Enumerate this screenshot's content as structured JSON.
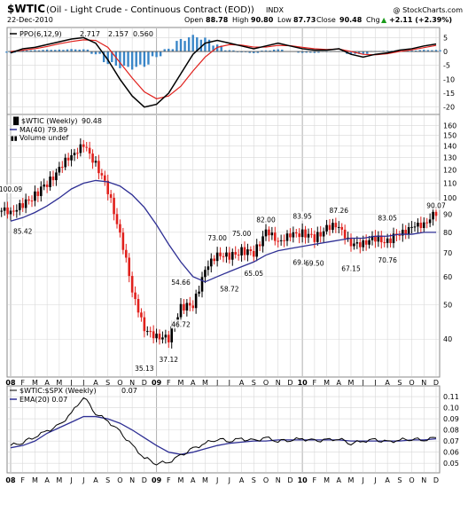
{
  "header": {
    "symbol": "$WTIC",
    "description": "(Oil - Light Crude - Continuous Contract (EOD))",
    "exchange": "INDX",
    "date": "22-Dec-2010",
    "watermark": "@ StockCharts.com",
    "open_label": "Open",
    "open": "88.78",
    "high_label": "High",
    "high": "90.80",
    "low_label": "Low",
    "low": "87.73",
    "close_label": "Close",
    "close": "90.48",
    "chg_label": "Chg",
    "chg": "+2.11 (+2.39%)",
    "chg_arrow": "▲"
  },
  "ppo_panel": {
    "legend_name": "PPO(6,12,9)",
    "ppo_value": "2.717",
    "signal_value": "2.157",
    "hist_value": "0.560",
    "ppo_color": "#000000",
    "signal_color": "#e0201c",
    "hist_color": "#3a86c8",
    "y_ticks": [
      "5",
      "0",
      "-5",
      "-10",
      "-15",
      "-20"
    ]
  },
  "price_panel": {
    "legend_name": "$WTIC (Weekly)",
    "legend_value": "90.48",
    "ma_legend": "MA(40) 79.89",
    "volume_legend": "Volume undef",
    "ma_color": "#2e2f94",
    "up_color": "#000000",
    "down_color": "#e0201c",
    "y_ticks": [
      "160",
      "150",
      "140",
      "130",
      "120",
      "110",
      "100",
      "90",
      "80",
      "70",
      "60",
      "50",
      "40"
    ]
  },
  "ratio_panel": {
    "legend_name": "$WTIC:$SPX (Weekly)",
    "legend_value": "0.07",
    "ema_legend": "EMA(20) 0.07",
    "ema_color": "#2e2f94",
    "y_ticks": [
      "0.11",
      "0.10",
      "0.09",
      "0.08",
      "0.07",
      "0.06",
      "0.05"
    ]
  },
  "x_axis_labels": [
    "08",
    "F",
    "M",
    "A",
    "M",
    "J",
    "J",
    "A",
    "S",
    "O",
    "N",
    "D",
    "09",
    "F",
    "M",
    "A",
    "M",
    "J",
    "J",
    "A",
    "S",
    "O",
    "N",
    "D",
    "10",
    "F",
    "M",
    "A",
    "M",
    "J",
    "J",
    "A",
    "S",
    "O",
    "N",
    "D"
  ],
  "colors": {
    "grid": "#d8d8d8",
    "frame": "#888888",
    "background": "#ffffff"
  },
  "chart_data": [
    {
      "type": "line",
      "name": "ppo-panel",
      "indicator": "PPO(6,12,9)",
      "x_start": "2008-01",
      "x_end": "2010-12",
      "ylim": [
        -22,
        8
      ],
      "series": [
        {
          "name": "PPO(6,12,9)",
          "values": [
            -0.5,
            1,
            1.5,
            2.5,
            3.5,
            4.5,
            5,
            3,
            -3,
            -10,
            -16,
            -20,
            -19,
            -15,
            -8,
            -1,
            3,
            4,
            3,
            2,
            1,
            2,
            3,
            2,
            1,
            0.5,
            0.5,
            1,
            -1,
            -2,
            -1,
            -0.5,
            0.5,
            1,
            2,
            2.7
          ]
        },
        {
          "name": "Signal",
          "values": [
            0,
            0.5,
            1,
            1.8,
            2.8,
            3.6,
            4.2,
            4,
            1.5,
            -4,
            -9.5,
            -14.5,
            -17,
            -16,
            -12.5,
            -7,
            -2,
            1.5,
            2.5,
            2.3,
            1.6,
            1.6,
            2.2,
            2.1,
            1.5,
            1,
            0.7,
            0.9,
            0,
            -1,
            -1.2,
            -0.8,
            0,
            0.6,
            1.4,
            2.2
          ]
        },
        {
          "name": "Histogram",
          "values": [
            -0.5,
            0.5,
            0.5,
            0.7,
            0.7,
            0.9,
            0.8,
            -1,
            -4.5,
            -6,
            -6.5,
            -5.5,
            -2,
            1,
            4.5,
            6,
            5,
            2.5,
            0.5,
            -0.3,
            -0.6,
            0.4,
            0.8,
            -0.1,
            -0.5,
            -0.5,
            -0.2,
            0.1,
            -1,
            -1,
            0.2,
            0.3,
            0.5,
            0.4,
            0.6,
            0.56
          ]
        }
      ]
    },
    {
      "type": "line",
      "name": "price-panel",
      "x_start": "2008-01",
      "x_end": "2010-12",
      "ylim": [
        32,
        168
      ],
      "log_scale": true,
      "series": [
        {
          "name": "$WTIC (Weekly)",
          "values": [
            92,
            95,
            102,
            110,
            120,
            133,
            140,
            125,
            105,
            78,
            55,
            42,
            41,
            40,
            49,
            50,
            62,
            70,
            68,
            71,
            70,
            80,
            76,
            78,
            80,
            77,
            82,
            84,
            73,
            75,
            77,
            75,
            80,
            82,
            85,
            90.5
          ]
        },
        {
          "name": "MA(40)",
          "values": [
            86,
            88,
            91,
            95,
            100,
            106,
            110,
            112,
            111,
            108,
            102,
            94,
            84,
            74,
            66,
            60,
            58,
            60,
            62,
            64,
            66,
            69,
            71,
            72,
            73,
            74,
            75,
            76,
            77,
            77,
            78,
            78,
            79,
            79,
            80,
            80
          ]
        }
      ],
      "annotations": [
        {
          "label": "100.09",
          "x": "2008-01",
          "y": 100.09
        },
        {
          "label": "85.42",
          "x": "2008-02",
          "y": 85.42
        },
        {
          "label": "35.13",
          "x": "2008-12",
          "y": 35.13
        },
        {
          "label": "37.12",
          "x": "2009-02",
          "y": 37.12
        },
        {
          "label": "46.72",
          "x": "2009-03",
          "y": 46.72
        },
        {
          "label": "54.66",
          "x": "2009-03",
          "y": 54.66
        },
        {
          "label": "73.00",
          "x": "2009-06",
          "y": 73.0
        },
        {
          "label": "58.72",
          "x": "2009-07",
          "y": 58.72
        },
        {
          "label": "75.00",
          "x": "2009-08",
          "y": 75.0
        },
        {
          "label": "65.05",
          "x": "2009-09",
          "y": 65.05
        },
        {
          "label": "82.00",
          "x": "2009-10",
          "y": 82.0
        },
        {
          "label": "83.95",
          "x": "2010-01",
          "y": 83.95
        },
        {
          "label": "69.81",
          "x": "2010-01",
          "y": 69.81
        },
        {
          "label": "69.50",
          "x": "2010-02",
          "y": 69.5
        },
        {
          "label": "87.26",
          "x": "2010-04",
          "y": 87.26
        },
        {
          "label": "67.15",
          "x": "2010-05",
          "y": 67.15
        },
        {
          "label": "83.05",
          "x": "2010-08",
          "y": 83.05
        },
        {
          "label": "70.76",
          "x": "2010-08",
          "y": 70.76
        },
        {
          "label": "90.07",
          "x": "2010-12",
          "y": 90.07
        }
      ]
    },
    {
      "type": "line",
      "name": "ratio-panel",
      "x_start": "2008-01",
      "x_end": "2010-12",
      "ylim": [
        0.043,
        0.118
      ],
      "series": [
        {
          "name": "$WTIC:$SPX (Weekly)",
          "values": [
            0.066,
            0.069,
            0.074,
            0.079,
            0.084,
            0.095,
            0.11,
            0.095,
            0.088,
            0.078,
            0.066,
            0.055,
            0.05,
            0.051,
            0.057,
            0.063,
            0.068,
            0.072,
            0.07,
            0.072,
            0.07,
            0.073,
            0.07,
            0.071,
            0.072,
            0.07,
            0.071,
            0.072,
            0.068,
            0.07,
            0.071,
            0.069,
            0.071,
            0.072,
            0.071,
            0.073
          ]
        },
        {
          "name": "EMA(20)",
          "values": [
            0.064,
            0.066,
            0.07,
            0.077,
            0.082,
            0.087,
            0.092,
            0.092,
            0.09,
            0.086,
            0.08,
            0.073,
            0.066,
            0.06,
            0.058,
            0.06,
            0.063,
            0.066,
            0.068,
            0.069,
            0.07,
            0.07,
            0.071,
            0.071,
            0.071,
            0.071,
            0.071,
            0.071,
            0.07,
            0.07,
            0.07,
            0.07,
            0.07,
            0.071,
            0.071,
            0.072
          ]
        }
      ]
    }
  ]
}
